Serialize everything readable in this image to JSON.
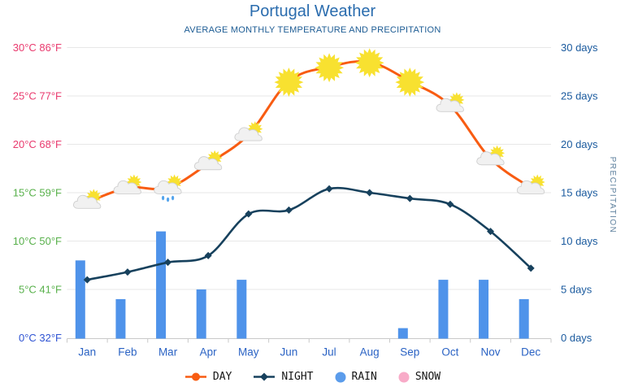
{
  "page": {
    "title": "Portugal Weather",
    "subtitle": "AVERAGE MONTHLY TEMPERATURE AND PRECIPITATION"
  },
  "legend": {
    "items": [
      {
        "label": "DAY",
        "marker": "line-dot",
        "color": "#f85c12"
      },
      {
        "label": "NIGHT",
        "marker": "line-diamond",
        "color": "#17415d"
      },
      {
        "label": "RAIN",
        "marker": "circle",
        "color": "#5b9ceb"
      },
      {
        "label": "SNOW",
        "marker": "circle",
        "color": "#f8abc8"
      }
    ]
  },
  "chart_data": {
    "type": "line+bar combo",
    "categories": [
      "Jan",
      "Feb",
      "Mar",
      "Apr",
      "May",
      "Jun",
      "Jul",
      "Aug",
      "Sep",
      "Oct",
      "Nov",
      "Dec"
    ],
    "series": [
      {
        "name": "DAY",
        "chart_type": "line",
        "unit": "°C",
        "color": "#f85c12",
        "values": [
          14,
          15.5,
          15.5,
          18,
          21,
          26.5,
          28,
          28.5,
          26.5,
          24,
          18.5,
          15.5
        ],
        "point_icons": [
          "partly-cloudy",
          "partly-cloudy",
          "rain-sun",
          "partly-cloudy",
          "partly-cloudy",
          "sunny",
          "sunny",
          "sunny",
          "sunny",
          "partly-cloudy",
          "partly-cloudy",
          "partly-cloudy"
        ]
      },
      {
        "name": "NIGHT",
        "chart_type": "line",
        "unit": "°C",
        "color": "#17415d",
        "values": [
          6,
          6.8,
          7.8,
          8.5,
          12.8,
          13.2,
          15.4,
          15,
          14.4,
          13.8,
          11,
          7.2
        ]
      },
      {
        "name": "RAIN",
        "chart_type": "bar",
        "unit": "days",
        "color": "#4f93ea",
        "values": [
          8,
          4,
          11,
          5,
          6,
          0,
          0,
          0,
          1,
          6,
          6,
          4
        ]
      },
      {
        "name": "SNOW",
        "chart_type": "bar",
        "unit": "days",
        "color": "#f8abc8",
        "values": [
          0,
          0,
          0,
          0,
          0,
          0,
          0,
          0,
          0,
          0,
          0,
          0
        ]
      }
    ],
    "left_axis": {
      "ticks": [
        {
          "celsius": "0°C",
          "fahrenheit": "32°F",
          "value": 0,
          "color": "#2e53d3"
        },
        {
          "celsius": "5°C",
          "fahrenheit": "41°F",
          "value": 5,
          "color": "#57b04a"
        },
        {
          "celsius": "10°C",
          "fahrenheit": "50°F",
          "value": 10,
          "color": "#57b04a"
        },
        {
          "celsius": "15°C",
          "fahrenheit": "59°F",
          "value": 15,
          "color": "#57b04a"
        },
        {
          "celsius": "20°C",
          "fahrenheit": "68°F",
          "value": 20,
          "color": "#e93a6e"
        },
        {
          "celsius": "25°C",
          "fahrenheit": "77°F",
          "value": 25,
          "color": "#e93a6e"
        },
        {
          "celsius": "30°C",
          "fahrenheit": "86°F",
          "value": 30,
          "color": "#e93a6e"
        }
      ]
    },
    "right_axis": {
      "label": "PRECIPITATION",
      "ticks": [
        "0 days",
        "5 days",
        "10 days",
        "15 days",
        "20 days",
        "25 days",
        "30 days"
      ]
    },
    "ylim": [
      0,
      30
    ],
    "grid": true,
    "legend_position": "bottom",
    "colors": {
      "grid": "#e7e7e7",
      "axis": "#c9c9c9",
      "sun": "#f8e130",
      "cloud_fill": "#f1f1f1",
      "cloud_stroke": "#cfcfcf",
      "raindrop": "#52a3ec"
    }
  }
}
